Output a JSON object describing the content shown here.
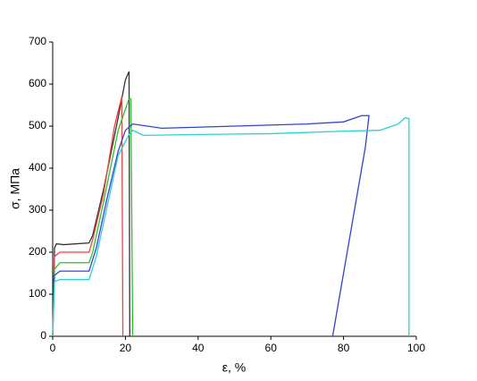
{
  "chart_data": {
    "type": "line",
    "xlabel": "ε, %",
    "ylabel": "σ, МПа",
    "xlim": [
      0,
      100
    ],
    "ylim": [
      0,
      700
    ],
    "xticks": [
      0,
      20,
      40,
      60,
      80,
      100
    ],
    "yticks": [
      0,
      100,
      200,
      300,
      400,
      500,
      600,
      700
    ],
    "series": [
      {
        "color": "#333333",
        "x": [
          0,
          0.5,
          1,
          3,
          10,
          11,
          14,
          18,
          20,
          21,
          21.2
        ],
        "values": [
          0,
          210,
          220,
          218,
          222,
          240,
          350,
          520,
          610,
          630,
          0
        ]
      },
      {
        "color": "#e8453c",
        "x": [
          0,
          0.5,
          2,
          10,
          11,
          14,
          17,
          19,
          19.3
        ],
        "values": [
          0,
          190,
          200,
          200,
          230,
          340,
          500,
          570,
          0
        ]
      },
      {
        "color": "#2ec02e",
        "x": [
          0,
          0.5,
          2,
          10,
          11,
          14,
          18,
          21,
          21.5,
          22
        ],
        "values": [
          0,
          160,
          175,
          175,
          200,
          320,
          490,
          565,
          565,
          0
        ]
      },
      {
        "color": "#3344cc",
        "x": [
          0,
          0.5,
          2,
          10,
          12,
          15,
          18,
          20,
          22,
          30,
          50,
          70,
          80,
          85,
          87,
          86,
          82,
          77
        ],
        "values": [
          0,
          145,
          155,
          155,
          210,
          330,
          440,
          490,
          505,
          495,
          500,
          505,
          510,
          525,
          525,
          450,
          250,
          0
        ]
      },
      {
        "color": "#2ad0d0",
        "x": [
          0,
          0.5,
          2,
          10,
          12,
          15,
          18,
          21,
          22,
          25,
          40,
          60,
          80,
          90,
          95,
          97,
          98,
          98
        ],
        "values": [
          0,
          130,
          135,
          135,
          190,
          310,
          430,
          480,
          490,
          478,
          480,
          482,
          488,
          490,
          505,
          520,
          518,
          0
        ]
      }
    ]
  }
}
